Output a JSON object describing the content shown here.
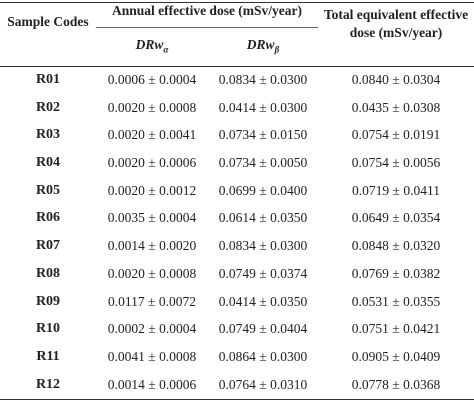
{
  "header": {
    "sample_codes": "Sample Codes",
    "annual": "Annual effective dose (mSv/year)",
    "total_line1": "Total equivalent effective",
    "total_line2": "dose (mSv/year)",
    "drwa_base": "DRw",
    "drwa_sub": "α",
    "drwb_base": "DRw",
    "drwb_sub": "β"
  },
  "rows": [
    {
      "code": "R01",
      "drwa": "0.0006 ± 0.0004",
      "drwb": "0.0834 ± 0.0300",
      "total": "0.0840 ± 0.0304"
    },
    {
      "code": "R02",
      "drwa": "0.0020 ± 0.0008",
      "drwb": "0.0414 ± 0.0300",
      "total": "0.0435 ± 0.0308"
    },
    {
      "code": "R03",
      "drwa": "0.0020 ± 0.0041",
      "drwb": "0.0734 ± 0.0150",
      "total": "0.0754 ± 0.0191"
    },
    {
      "code": "R04",
      "drwa": "0.0020 ± 0.0006",
      "drwb": "0.0734 ± 0.0050",
      "total": "0.0754 ± 0.0056"
    },
    {
      "code": "R05",
      "drwa": "0.0020 ± 0.0012",
      "drwb": "0.0699 ± 0.0400",
      "total": "0.0719 ± 0.0411"
    },
    {
      "code": "R06",
      "drwa": "0.0035 ± 0.0004",
      "drwb": "0.0614 ± 0.0350",
      "total": "0.0649 ± 0.0354"
    },
    {
      "code": "R07",
      "drwa": "0.0014 ± 0.0020",
      "drwb": "0.0834 ± 0.0300",
      "total": "0.0848 ± 0.0320"
    },
    {
      "code": "R08",
      "drwa": "0.0020 ± 0.0008",
      "drwb": "0.0749 ± 0.0374",
      "total": "0.0769 ± 0.0382"
    },
    {
      "code": "R09",
      "drwa": "0.0117 ± 0.0072",
      "drwb": "0.0414 ± 0.0350",
      "total": "0.0531 ± 0.0355"
    },
    {
      "code": "R10",
      "drwa": "0.0002 ± 0.0004",
      "drwb": "0.0749 ± 0.0404",
      "total": "0.0751 ± 0.0421"
    },
    {
      "code": "R11",
      "drwa": "0.0041 ± 0.0008",
      "drwb": "0.0864 ± 0.0300",
      "total": "0.0905 ± 0.0409"
    },
    {
      "code": "R12",
      "drwa": "0.0014 ± 0.0006",
      "drwb": "0.0764 ± 0.0310",
      "total": "0.0778 ± 0.0368"
    }
  ]
}
